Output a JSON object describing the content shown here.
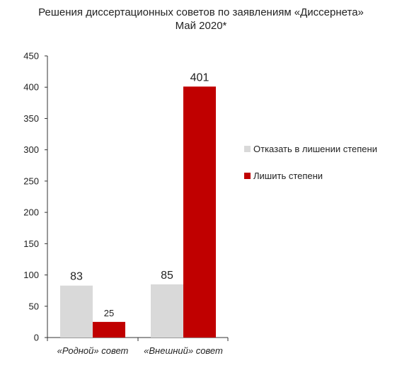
{
  "chart_data": {
    "type": "bar",
    "title": "Решения диссертационных советов по заявлениям «Диссернета»",
    "subtitle": "Май 2020*",
    "categories": [
      "«Родной» совет",
      "«Внешний» совет"
    ],
    "series": [
      {
        "name": "Отказать в лишении степени",
        "values": [
          83,
          85
        ],
        "color": "#d9d9d9"
      },
      {
        "name": "Лишить степени",
        "values": [
          25,
          401
        ],
        "color": "#c00000"
      }
    ],
    "data_labels": [
      [
        "83",
        "85"
      ],
      [
        "25",
        "401"
      ]
    ],
    "ylim": [
      0,
      450
    ],
    "yticks": [
      0,
      50,
      100,
      150,
      200,
      250,
      300,
      350,
      400,
      450
    ],
    "xlabel": "",
    "ylabel": "",
    "grid": false,
    "legend_position": "right"
  }
}
